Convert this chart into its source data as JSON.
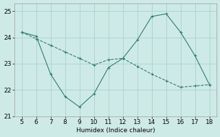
{
  "x": [
    5,
    6,
    7,
    8,
    9,
    10,
    11,
    12,
    13,
    14,
    15,
    16,
    17,
    18
  ],
  "y_solid": [
    24.2,
    24.05,
    22.6,
    21.75,
    21.35,
    21.85,
    22.85,
    23.2,
    23.9,
    24.8,
    24.9,
    24.2,
    23.3,
    22.2
  ],
  "x_dashed": [
    5,
    6,
    7,
    8,
    9,
    10,
    11,
    12,
    13,
    14,
    15,
    16,
    17,
    18
  ],
  "y_dashed": [
    24.2,
    23.95,
    23.7,
    23.45,
    23.2,
    22.95,
    23.15,
    23.2,
    22.9,
    22.6,
    22.35,
    22.1,
    22.15,
    22.2
  ],
  "line_color": "#2d7a6e",
  "bg_color": "#ceeae7",
  "grid_color": "#aed4d0",
  "xlabel": "Humidex (Indice chaleur)",
  "xlim": [
    4.5,
    18.5
  ],
  "ylim": [
    21.0,
    25.3
  ],
  "yticks": [
    21,
    22,
    23,
    24,
    25
  ],
  "xticks": [
    5,
    6,
    7,
    8,
    9,
    10,
    11,
    12,
    13,
    14,
    15,
    16,
    17,
    18
  ],
  "marker": "+"
}
